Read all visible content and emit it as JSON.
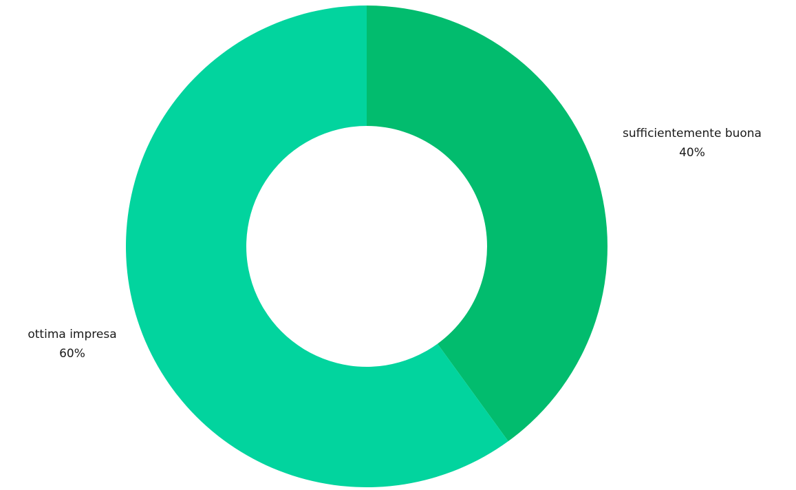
{
  "chart_data": {
    "type": "pie",
    "variant": "donut",
    "title": "",
    "slices": [
      {
        "label": "sufficientemente buona",
        "value": 40,
        "value_label": "40%",
        "color": "#02BC6E"
      },
      {
        "label": "ottima impresa",
        "value": 60,
        "value_label": "60%",
        "color": "#02D49E"
      }
    ],
    "start_angle_deg": 0,
    "direction": "clockwise",
    "legend": "none"
  }
}
